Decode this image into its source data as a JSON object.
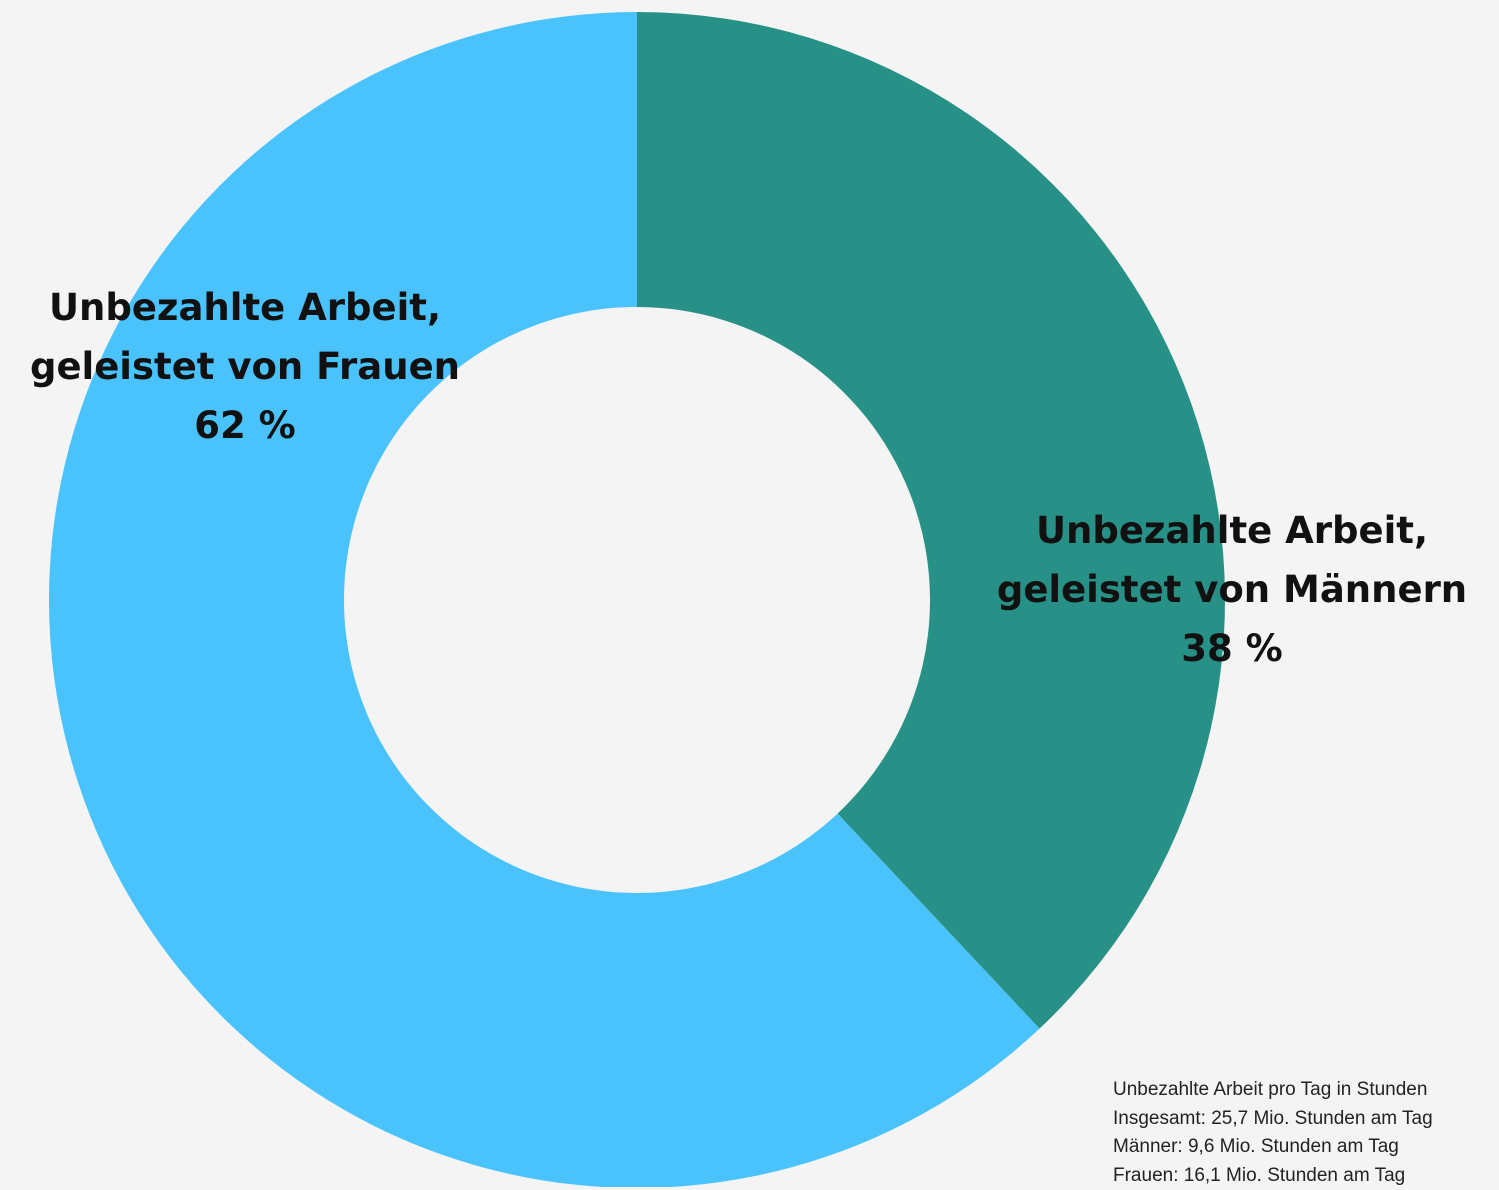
{
  "chart_data": {
    "type": "donut",
    "categories": [
      "Unbezahlte Arbeit, geleistet von Männern",
      "Unbezahlte Arbeit, geleistet von Frauen"
    ],
    "values": [
      38,
      62
    ],
    "value_labels": [
      "38 %",
      "62 %"
    ],
    "colors": [
      "#279187",
      "#4ac3fd"
    ],
    "annotations": [
      "Unbezahlte Arbeit pro Tag in Stunden",
      "Insgesamt: 25,7 Mio. Stunden am Tag",
      "Männer: 9,6 Mio. Stunden am Tag",
      "Frauen: 16,1 Mio. Stunden am Tag"
    ]
  }
}
